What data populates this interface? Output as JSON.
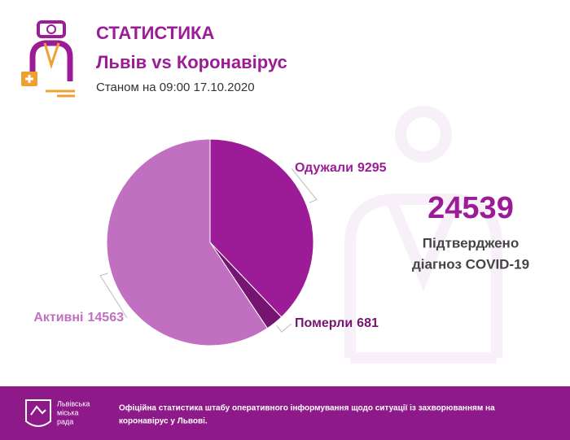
{
  "header": {
    "title": "СТАТИСТИКА",
    "subtitle": "Львів vs Коронавірус",
    "date": "Станом на 09:00 17.10.2020"
  },
  "chart_data": {
    "type": "pie",
    "categories": [
      "Одужали",
      "Померли",
      "Активні"
    ],
    "values": [
      9295,
      681,
      14563
    ],
    "colors": [
      "#9b1c96",
      "#761570",
      "#c170c1"
    ]
  },
  "summary": {
    "total": 24539,
    "line1": "Підтверджено",
    "line2": "діагноз COVID-19"
  },
  "footer": {
    "logo": [
      "Львівська",
      "міська",
      "рада"
    ],
    "text_line1": "Офіційна статистика штабу оперативного інформування щодо ситуації із захворюванням на",
    "text_line2": "коронавірус у Львові."
  }
}
